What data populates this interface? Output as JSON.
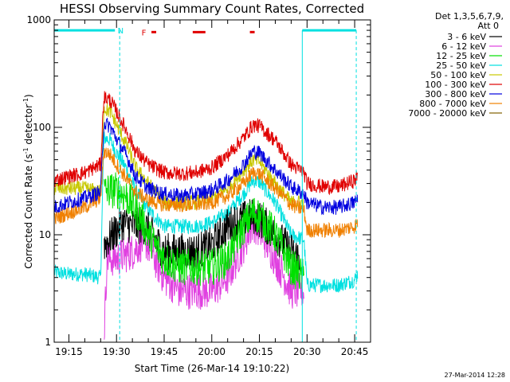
{
  "chart_data": {
    "type": "line",
    "title": "HESSI Observing Summary Count Rates, Corrected",
    "xlabel": "Start Time (26-Mar-14 19:10:22)",
    "ylabel": "Corrected Count Rate (s",
    "ylabel_sup1": "-1",
    "ylabel_mid": " detector",
    "ylabel_sup2": "-1",
    "ylabel_end": ")",
    "yscale": "log",
    "xlim_minutes": [
      1150.37,
      1250.0
    ],
    "ylim": [
      1,
      1000
    ],
    "x_ticks": [
      {
        "minute": 1155,
        "label": "19:15"
      },
      {
        "minute": 1170,
        "label": "19:30"
      },
      {
        "minute": 1185,
        "label": "19:45"
      },
      {
        "minute": 1200,
        "label": "20:00"
      },
      {
        "minute": 1215,
        "label": "20:15"
      },
      {
        "minute": 1230,
        "label": "20:30"
      },
      {
        "minute": 1245,
        "label": "20:45"
      }
    ],
    "y_ticks": [
      {
        "value": 1,
        "label": "1"
      },
      {
        "value": 10,
        "label": "10"
      },
      {
        "value": 100,
        "label": "100"
      },
      {
        "value": 1000,
        "label": "1000"
      }
    ],
    "legend_header": [
      "Det 1,3,5,6,7,9,",
      "Att 0"
    ],
    "legend_placement": "right",
    "series": [
      {
        "name": "3 - 6 keV",
        "color": "#000000",
        "x": [
          1150.4,
          1160,
          1165,
          1166,
          1170,
          1172,
          1175,
          1179,
          1185,
          1190,
          1195,
          1200,
          1205,
          1207,
          1210,
          1213,
          1215,
          1220,
          1225,
          1228,
          1229
        ],
        "y": [
          null,
          null,
          null,
          8,
          11,
          13,
          12,
          12,
          7,
          7,
          7,
          8,
          12,
          13,
          14,
          15,
          14,
          10,
          7,
          6,
          null
        ]
      },
      {
        "name": "6 - 12 keV",
        "color": "#e040e0",
        "x": [
          1150.4,
          1160,
          1165,
          1166,
          1167,
          1170,
          1175,
          1179,
          1182,
          1185,
          1190,
          1195,
          1200,
          1205,
          1210,
          1213,
          1215,
          1220,
          1225,
          1229,
          1230,
          1235,
          1240
        ],
        "y": [
          null,
          null,
          null,
          1,
          6,
          6,
          7,
          9,
          6,
          4,
          3,
          3,
          3,
          4,
          8,
          13,
          11,
          6,
          3,
          3,
          null,
          null,
          null
        ]
      },
      {
        "name": "12 - 25 keV",
        "color": "#00e000",
        "x": [
          1150.4,
          1160,
          1165,
          1166,
          1168,
          1170,
          1173,
          1175,
          1178,
          1180,
          1185,
          1190,
          1195,
          1200,
          1205,
          1210,
          1213,
          1215,
          1220,
          1225,
          1229,
          1230
        ],
        "y": [
          null,
          null,
          null,
          25,
          26,
          26,
          23,
          19,
          14,
          10,
          6,
          5,
          5,
          5,
          6,
          12,
          16,
          15,
          10,
          5,
          4,
          null
        ]
      },
      {
        "name": "25 - 50 keV",
        "color": "#00e0e0",
        "x": [
          1150.4,
          1155,
          1160,
          1165,
          1166,
          1168,
          1170,
          1173,
          1176,
          1180,
          1185,
          1190,
          1195,
          1200,
          1205,
          1210,
          1213,
          1215,
          1220,
          1225,
          1229,
          1230,
          1235,
          1240,
          1245,
          1246
        ],
        "y": [
          4.5,
          4.3,
          4.3,
          4.0,
          80,
          76,
          58,
          42,
          26,
          17,
          12,
          12,
          12,
          13,
          16,
          24,
          32,
          31,
          20,
          10,
          9,
          3.4,
          3.4,
          3.4,
          3.8,
          4.4
        ]
      },
      {
        "name": "50 - 100 keV",
        "color": "#c8c800",
        "x": [
          1150.4,
          1155,
          1160,
          1165,
          1166,
          1168,
          1170,
          1173,
          1176,
          1180,
          1185,
          1190,
          1195,
          1200,
          1205,
          1210,
          1213,
          1215,
          1220,
          1225,
          1229,
          1230
        ],
        "y": [
          27,
          27,
          27,
          25,
          150,
          140,
          105,
          70,
          42,
          30,
          20,
          20,
          20,
          22,
          27,
          40,
          50,
          48,
          30,
          20,
          20,
          null
        ]
      },
      {
        "name": "100 - 300 keV",
        "color": "#e00000",
        "x": [
          1150.4,
          1155,
          1160,
          1165,
          1166,
          1168,
          1170,
          1173,
          1176,
          1180,
          1185,
          1190,
          1195,
          1200,
          1205,
          1210,
          1213,
          1215,
          1220,
          1225,
          1229,
          1230,
          1235,
          1240,
          1245,
          1246
        ],
        "y": [
          32,
          35,
          38,
          45,
          190,
          180,
          140,
          95,
          60,
          45,
          38,
          37,
          38,
          42,
          55,
          80,
          105,
          103,
          75,
          45,
          38,
          30,
          28,
          28,
          32,
          35
        ]
      },
      {
        "name": "300 - 800 keV",
        "color": "#0000e0",
        "x": [
          1150.4,
          1155,
          1160,
          1165,
          1166,
          1168,
          1170,
          1173,
          1176,
          1180,
          1185,
          1190,
          1195,
          1200,
          1205,
          1210,
          1213,
          1215,
          1220,
          1225,
          1229,
          1230,
          1235,
          1240,
          1245,
          1246
        ],
        "y": [
          18,
          20,
          22,
          25,
          110,
          102,
          78,
          55,
          35,
          27,
          24,
          23,
          24,
          26,
          32,
          45,
          60,
          58,
          40,
          28,
          24,
          20,
          18,
          18,
          20,
          22
        ]
      },
      {
        "name": "800 - 7000 keV",
        "color": "#f08000",
        "x": [
          1150.4,
          1155,
          1160,
          1165,
          1166,
          1168,
          1170,
          1173,
          1176,
          1180,
          1185,
          1190,
          1195,
          1200,
          1205,
          1210,
          1213,
          1215,
          1220,
          1225,
          1229,
          1230,
          1235,
          1240,
          1245,
          1246
        ],
        "y": [
          14,
          16,
          18,
          22,
          60,
          56,
          45,
          34,
          25,
          21,
          19,
          19,
          19,
          20,
          23,
          30,
          38,
          37,
          27,
          19,
          17,
          11,
          11,
          11,
          12,
          13
        ]
      },
      {
        "name": "7000 - 20000 keV",
        "color": "#806000",
        "x": [
          1150.4,
          1160,
          1165
        ],
        "y": [
          null,
          null,
          null
        ]
      }
    ],
    "markers": {
      "night_bar": {
        "color": "#00e0e0",
        "level": 800,
        "segments": [
          [
            1150.4,
            1169.5
          ],
          [
            1228.5,
            1245.5
          ]
        ],
        "label": "N",
        "label_minute": 1171.3
      },
      "saa_lines": {
        "color": "#00e0e0",
        "minutes": [
          1171.0,
          1245.5
        ]
      },
      "solid_line": {
        "color": "#00e0e0",
        "minute": 1228.5
      },
      "flare": {
        "color": "#e00000",
        "label": "F",
        "label_minute": 1178.6,
        "level": 770,
        "segments": [
          [
            1181.0,
            1182.5
          ],
          [
            1194.0,
            1198.0
          ],
          [
            1212.0,
            1213.5
          ]
        ]
      }
    },
    "footer_timestamp": "27-Mar-2014 12:28"
  }
}
